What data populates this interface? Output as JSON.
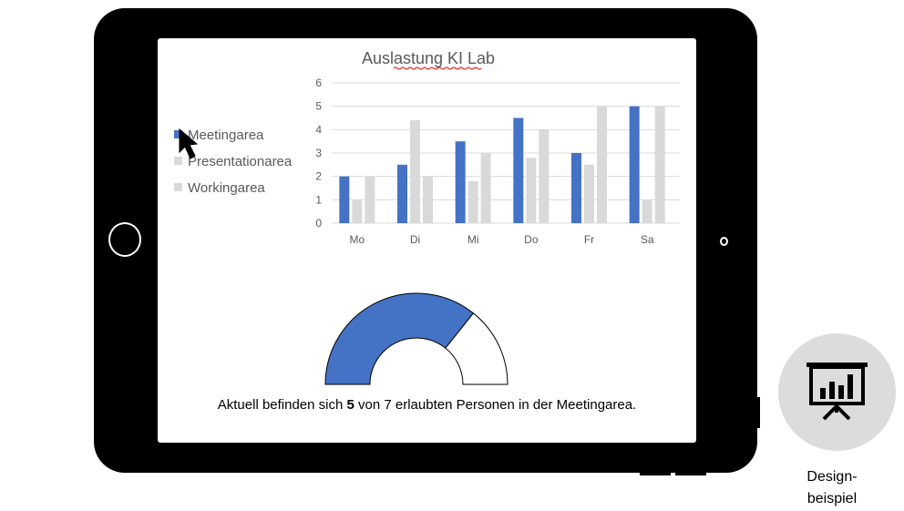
{
  "chart_data": [
    {
      "type": "bar",
      "title": "Auslastung KI Lab",
      "categories": [
        "Mo",
        "Di",
        "Mi",
        "Do",
        "Fr",
        "Sa"
      ],
      "series": [
        {
          "name": "Meetingarea",
          "color": "#4472c4",
          "values": [
            2,
            2.5,
            3.5,
            4.5,
            3,
            5
          ]
        },
        {
          "name": "Presentationarea",
          "color": "#d9d9d9",
          "values": [
            1,
            4.4,
            1.8,
            2.8,
            2.5,
            1
          ]
        },
        {
          "name": "Workingarea",
          "color": "#d9d9d9",
          "values": [
            2,
            2,
            3,
            4,
            5,
            5
          ]
        }
      ],
      "ylim": [
        0,
        6
      ],
      "yticks": [
        "0",
        "1",
        "2",
        "3",
        "4",
        "5",
        "6"
      ],
      "grid": true,
      "legend": "left"
    },
    {
      "type": "pie",
      "style": "half-donut",
      "filled": 5,
      "total": 7,
      "fill_color": "#4472c4",
      "empty_color": "#ffffff"
    }
  ],
  "caption": {
    "prefix": "Aktuell befinden sich ",
    "count": "5",
    "suffix": " von 7 erlaubten Personen in der Meetingarea."
  },
  "badge": {
    "icon": "presentation-chart-icon",
    "label_line1": "Design-",
    "label_line2": "beispiel"
  },
  "colors": {
    "tablet": "#000000",
    "accent": "#4472c4",
    "secondary": "#d9d9d9",
    "badge_bg": "#dcdcdc"
  }
}
